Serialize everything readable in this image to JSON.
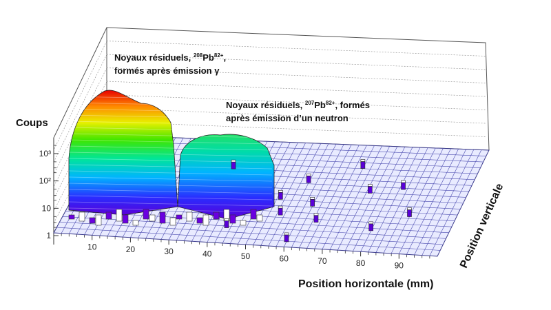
{
  "chart_data": {
    "type": "lego3d",
    "ylabel": "Coups",
    "xlabel": "Position horizontale (mm)",
    "zlabel": "Position verticale",
    "x_ticks": [
      "10",
      "20",
      "30",
      "40",
      "50",
      "60",
      "70",
      "80",
      "90"
    ],
    "y_ticks": [
      "10³",
      "10²",
      "10",
      "1"
    ],
    "y_scale": "log",
    "y_range": [
      0.5,
      3000
    ],
    "x_range": [
      0,
      100
    ],
    "annotations": [
      {
        "text_a": "Noyaux résiduels, ",
        "iso": "208",
        "nucleus": "Pb",
        "charge": "82+",
        "text_b": ",",
        "line2": "formés après émission γ"
      },
      {
        "text_a": "Noyaux résiduels, ",
        "iso": "207",
        "nucleus": "Pb",
        "charge": "82+",
        "text_b": ", formés",
        "line2": "après émission d’un neutron"
      }
    ],
    "peaks": [
      {
        "name": "208Pb82+ (émission γ)",
        "center_x": 17,
        "max_counts": 2500
      },
      {
        "name": "207Pb82+ (émission d’un neutron)",
        "center_x": 45,
        "max_counts": 250
      }
    ],
    "isolated_counts_x": [
      37,
      43,
      53,
      55,
      58,
      60,
      62,
      65,
      70,
      75,
      80,
      83,
      88
    ]
  }
}
